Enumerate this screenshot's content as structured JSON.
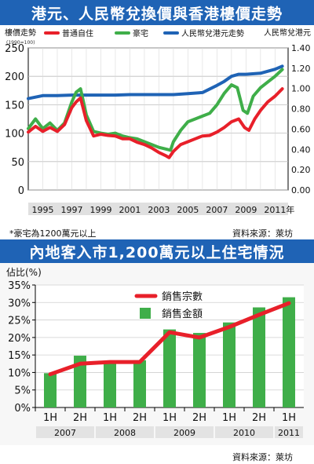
{
  "chart_data": [
    {
      "type": "line",
      "title": "港元、人民幣兌換價與香港樓價走勢",
      "ylabel_left": "樓價走勢",
      "ylabel_left_sub": "(1990=100)",
      "ylabel_right": "人民幣兌港元",
      "x_unit": "年",
      "x_ticks": [
        "1995",
        "1997",
        "1999",
        "2001",
        "2003",
        "2005",
        "2007",
        "2009",
        "2011"
      ],
      "xlim": [
        1994,
        2011.9
      ],
      "ylim_left": [
        0,
        250
      ],
      "yticks_left": [
        "0",
        "50",
        "100",
        "150",
        "200",
        "250"
      ],
      "ylim_right": [
        0,
        1.4
      ],
      "yticks_right": [
        "0.00",
        "0.20",
        "0.40",
        "0.60",
        "0.80",
        "1.00",
        "1.20",
        "1.40"
      ],
      "legend_placement": "top",
      "series": [
        {
          "name": "普通自住",
          "color": "#e8202a",
          "axis": "left",
          "points": [
            [
              1994.0,
              102
            ],
            [
              1994.5,
              112
            ],
            [
              1995.0,
              103
            ],
            [
              1995.5,
              110
            ],
            [
              1996.0,
              103
            ],
            [
              1996.5,
              115
            ],
            [
              1997.0,
              145
            ],
            [
              1997.3,
              155
            ],
            [
              1997.6,
              162
            ],
            [
              1998.0,
              122
            ],
            [
              1998.5,
              95
            ],
            [
              1999.0,
              98
            ],
            [
              1999.5,
              96
            ],
            [
              2000.0,
              95
            ],
            [
              2000.5,
              90
            ],
            [
              2001.0,
              90
            ],
            [
              2001.5,
              84
            ],
            [
              2002.0,
              80
            ],
            [
              2002.5,
              74
            ],
            [
              2003.0,
              66
            ],
            [
              2003.5,
              60
            ],
            [
              2003.7,
              57
            ],
            [
              2004.0,
              68
            ],
            [
              2004.5,
              80
            ],
            [
              2005.0,
              85
            ],
            [
              2005.5,
              90
            ],
            [
              2006.0,
              95
            ],
            [
              2006.5,
              96
            ],
            [
              2007.0,
              102
            ],
            [
              2007.5,
              110
            ],
            [
              2008.0,
              120
            ],
            [
              2008.5,
              125
            ],
            [
              2008.9,
              110
            ],
            [
              2009.2,
              105
            ],
            [
              2009.6,
              125
            ],
            [
              2010.0,
              140
            ],
            [
              2010.5,
              155
            ],
            [
              2011.0,
              165
            ],
            [
              2011.5,
              178
            ]
          ]
        },
        {
          "name": "豪宅",
          "color": "#3fae49",
          "axis": "left",
          "points": [
            [
              1994.0,
              108
            ],
            [
              1994.5,
              125
            ],
            [
              1995.0,
              108
            ],
            [
              1995.5,
              118
            ],
            [
              1996.0,
              105
            ],
            [
              1996.5,
              118
            ],
            [
              1997.0,
              155
            ],
            [
              1997.3,
              172
            ],
            [
              1997.6,
              178
            ],
            [
              1998.0,
              132
            ],
            [
              1998.5,
              103
            ],
            [
              1999.0,
              100
            ],
            [
              1999.5,
              98
            ],
            [
              2000.0,
              100
            ],
            [
              2000.5,
              95
            ],
            [
              2001.0,
              92
            ],
            [
              2001.5,
              90
            ],
            [
              2002.0,
              85
            ],
            [
              2002.5,
              80
            ],
            [
              2003.0,
              75
            ],
            [
              2003.5,
              72
            ],
            [
              2003.8,
              70
            ],
            [
              2004.0,
              85
            ],
            [
              2004.5,
              105
            ],
            [
              2005.0,
              120
            ],
            [
              2005.5,
              125
            ],
            [
              2006.0,
              130
            ],
            [
              2006.5,
              135
            ],
            [
              2007.0,
              150
            ],
            [
              2007.5,
              170
            ],
            [
              2008.0,
              185
            ],
            [
              2008.4,
              180
            ],
            [
              2008.8,
              140
            ],
            [
              2009.1,
              135
            ],
            [
              2009.5,
              165
            ],
            [
              2010.0,
              180
            ],
            [
              2010.5,
              190
            ],
            [
              2011.0,
              200
            ],
            [
              2011.5,
              212
            ]
          ]
        },
        {
          "name": "人民幣兌港元走勢",
          "color": "#1f63b5",
          "axis": "right",
          "points": [
            [
              1994.0,
              0.9
            ],
            [
              1995.0,
              0.93
            ],
            [
              1996.0,
              0.93
            ],
            [
              1997.0,
              0.935
            ],
            [
              1998.0,
              0.935
            ],
            [
              1999.0,
              0.935
            ],
            [
              2000.0,
              0.935
            ],
            [
              2001.0,
              0.94
            ],
            [
              2002.0,
              0.94
            ],
            [
              2003.0,
              0.94
            ],
            [
              2004.0,
              0.94
            ],
            [
              2005.0,
              0.95
            ],
            [
              2006.0,
              0.96
            ],
            [
              2007.0,
              1.03
            ],
            [
              2007.5,
              1.07
            ],
            [
              2008.0,
              1.12
            ],
            [
              2008.5,
              1.14
            ],
            [
              2009.0,
              1.14
            ],
            [
              2010.0,
              1.15
            ],
            [
              2011.0,
              1.19
            ],
            [
              2011.5,
              1.22
            ]
          ]
        }
      ],
      "note": "*豪宅為1200萬元以上",
      "source": "資料來源：萊坊"
    },
    {
      "type": "bar",
      "title": "內地客入市1,200萬元以上住宅情況",
      "ylabel": "佔比(%)",
      "ylim": [
        0,
        35
      ],
      "yticks": [
        "0%",
        "5%",
        "10%",
        "15%",
        "20%",
        "25%",
        "30%",
        "35%"
      ],
      "categories": [
        "1H",
        "2H",
        "1H",
        "2H",
        "1H",
        "2H",
        "1H",
        "2H",
        "1H"
      ],
      "groups": [
        {
          "label": "2007",
          "span": 2
        },
        {
          "label": "2008",
          "span": 2
        },
        {
          "label": "2009",
          "span": 2
        },
        {
          "label": "2010",
          "span": 2
        },
        {
          "label": "2011",
          "span": 1
        }
      ],
      "legend_placement": "top-center",
      "series": [
        {
          "name": "銷售宗數",
          "type": "line",
          "color": "#e8202a",
          "values": [
            9.5,
            12.5,
            13,
            13,
            21.5,
            20,
            23,
            26.5,
            29.8
          ]
        },
        {
          "name": "銷售金額",
          "type": "bar",
          "color": "#3fae49",
          "values": [
            9.8,
            14.8,
            13.2,
            13.5,
            22.3,
            21.3,
            24.3,
            28.6,
            31.5
          ]
        }
      ],
      "source": "資料來源：萊坊"
    }
  ]
}
